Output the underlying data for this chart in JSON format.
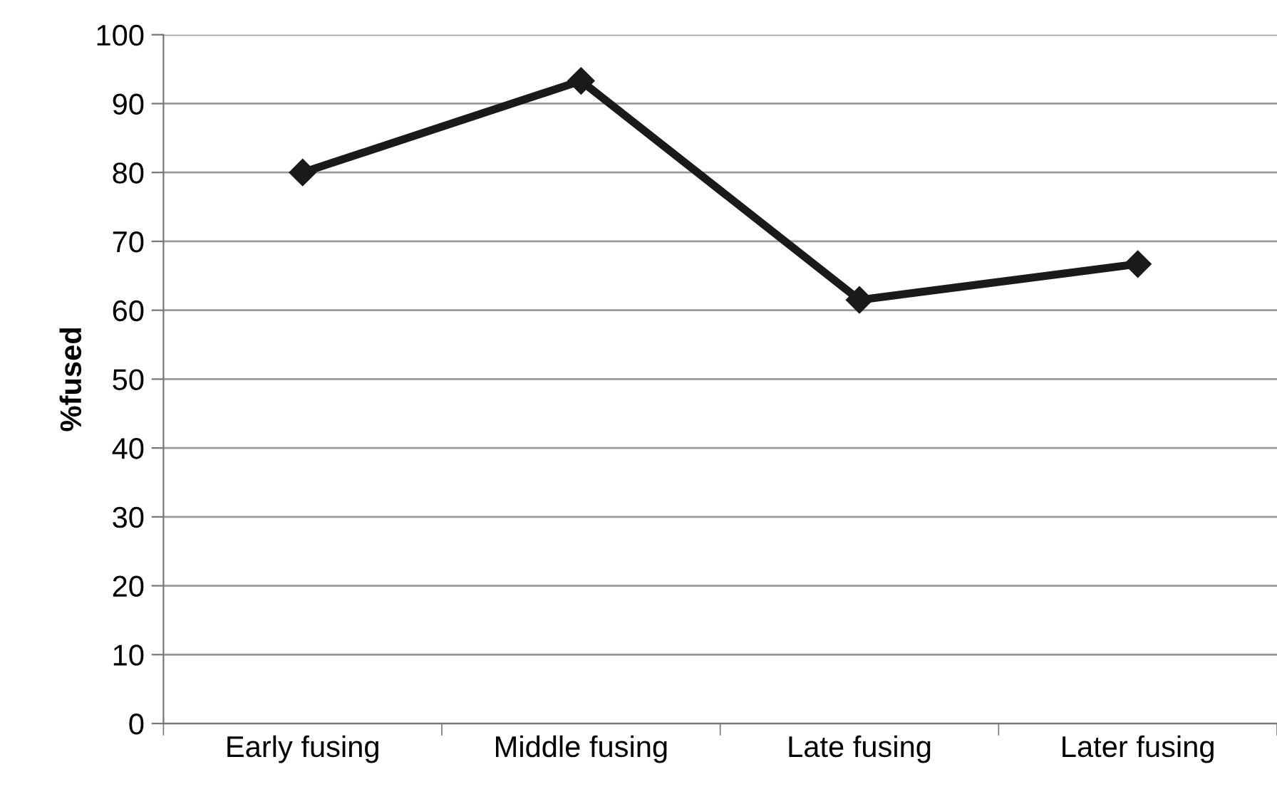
{
  "chart_data": {
    "type": "line",
    "ylabel": "%fused",
    "categories": [
      "Early fusing",
      "Middle fusing",
      "Late fusing",
      "Later fusing"
    ],
    "series": [
      {
        "color": "#1a1a1a",
        "values": [
          80,
          93.3,
          61.5,
          66.7
        ]
      }
    ],
    "ylim": [
      0,
      100
    ],
    "yticks": [
      0,
      10,
      20,
      30,
      40,
      50,
      60,
      70,
      80,
      90,
      100
    ],
    "grid": "y",
    "marker": "diamond",
    "line_style": "solid"
  }
}
